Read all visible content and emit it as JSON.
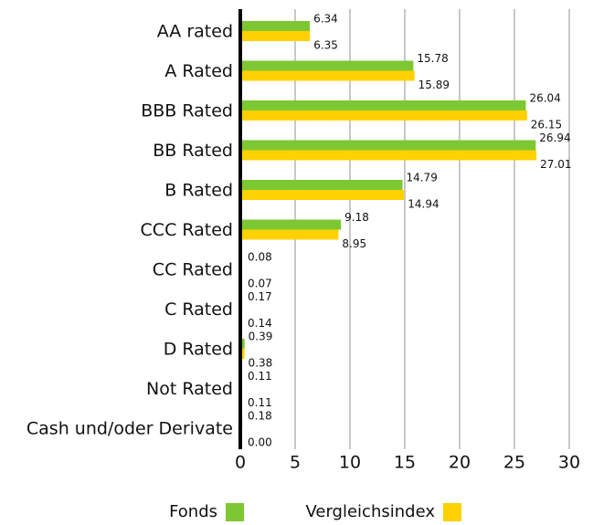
{
  "chart_data": {
    "type": "bar",
    "orientation": "horizontal",
    "categories": [
      "AA rated",
      "A Rated",
      "BBB Rated",
      "BB Rated",
      "B Rated",
      "CCC Rated",
      "CC Rated",
      "C Rated",
      "D Rated",
      "Not Rated",
      "Cash und/oder Derivate"
    ],
    "series": [
      {
        "name": "Fonds",
        "color": "#7dc832",
        "values": [
          6.34,
          15.78,
          26.04,
          26.94,
          14.79,
          9.18,
          0.08,
          0.17,
          0.39,
          0.11,
          0.18
        ],
        "value_labels": [
          "6.34",
          "15.78",
          "26.04",
          "26.94",
          "14.79",
          "9.18",
          "0.08",
          "0.17",
          "0.39",
          "0.11",
          "0.18"
        ]
      },
      {
        "name": "Vergleichsindex",
        "color": "#ffd100",
        "values": [
          6.35,
          15.89,
          26.15,
          27.01,
          14.94,
          8.95,
          0.07,
          0.14,
          0.38,
          0.11,
          0
        ],
        "value_labels": [
          "6.35",
          "15.89",
          "26.15",
          "27.01",
          "14.94",
          "8.95",
          "0.07",
          "0.14",
          "0.38",
          "0.11",
          "0.00"
        ]
      }
    ],
    "xlim": [
      0,
      30
    ],
    "xticks": [
      0,
      5,
      10,
      15,
      20,
      25,
      30
    ],
    "grid": true,
    "legend": "bottom"
  }
}
